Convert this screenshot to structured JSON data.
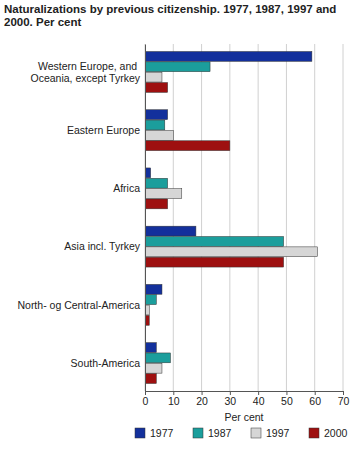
{
  "chart_data": {
    "type": "bar",
    "orientation": "horizontal",
    "title": "Naturalizations by previous citizenship. 1977, 1987, 1997 and 2000. Per cent",
    "x_label": "Per cent",
    "categories": [
      "Western Europe, and Oceania, except Tyrkey",
      "Eastern Europe",
      "Africa",
      "Asia incl. Tyrkey",
      "North- og Central-America",
      "South-America"
    ],
    "series": [
      {
        "name": "1977",
        "color": "#13309c",
        "values": [
          59,
          8,
          2,
          18,
          6,
          4
        ]
      },
      {
        "name": "1987",
        "color": "#1b9e9c",
        "values": [
          23,
          7,
          8,
          49,
          4,
          9
        ]
      },
      {
        "name": "1997",
        "color": "#d6d6d6",
        "values": [
          6,
          10,
          13,
          61,
          1.5,
          6
        ]
      },
      {
        "name": "2000",
        "color": "#9e1010",
        "values": [
          8,
          30,
          8,
          49,
          1.5,
          4
        ]
      }
    ],
    "xlim": [
      0,
      70
    ],
    "xticks": [
      0,
      10,
      20,
      30,
      40,
      50,
      60,
      70
    ],
    "grid": true,
    "legend": "bottom"
  }
}
